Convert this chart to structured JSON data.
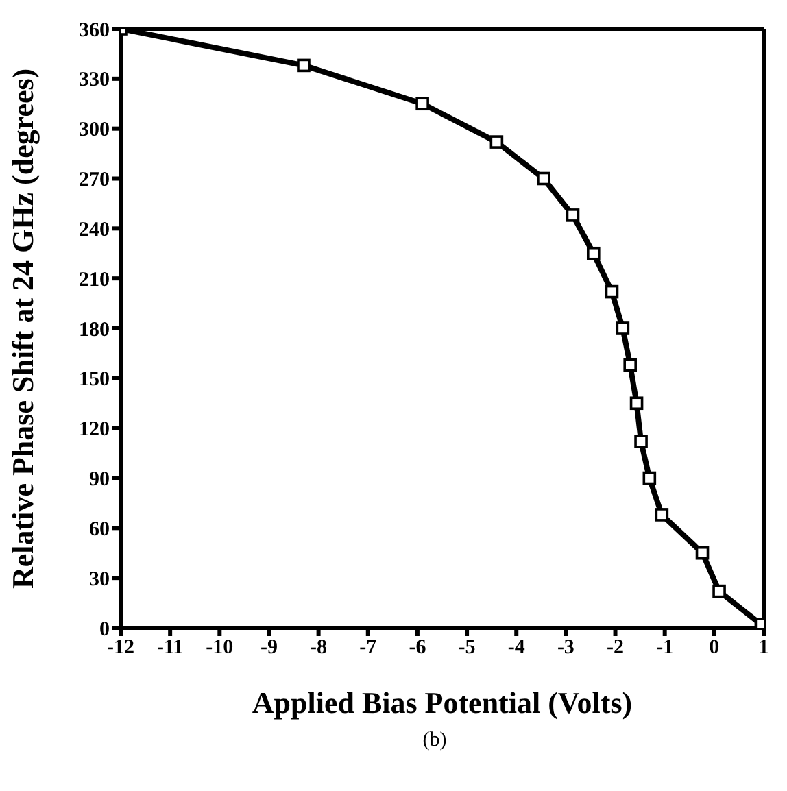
{
  "chart_data": {
    "type": "line",
    "xlabel": "Applied Bias Potential (Volts)",
    "ylabel": "Relative Phase Shift at 24 GHz (degrees)",
    "annotations": [
      "(b)"
    ],
    "x": [
      -12,
      -8.3,
      -5.9,
      -4.4,
      -3.45,
      -2.86,
      -2.44,
      -2.07,
      -1.85,
      -1.7,
      -1.57,
      -1.48,
      -1.31,
      -1.06,
      -0.24,
      0.1,
      0.95
    ],
    "series": [
      {
        "color": "#000000",
        "values": [
          360,
          338,
          315,
          292,
          270,
          248,
          225,
          202,
          180,
          158,
          135,
          112,
          90,
          68,
          45,
          22,
          2
        ]
      }
    ],
    "xlim": [
      -12,
      1
    ],
    "xticks": [
      -12,
      -11,
      -10,
      -9,
      -8,
      -7,
      -6,
      -5,
      -4,
      -3,
      -2,
      -1,
      0,
      1
    ],
    "ylim": [
      0,
      360
    ],
    "yticks": [
      0,
      30,
      60,
      90,
      120,
      150,
      180,
      210,
      240,
      270,
      300,
      330,
      360
    ],
    "grid": false,
    "legend": false,
    "marker": "square",
    "line_style": "solid"
  }
}
